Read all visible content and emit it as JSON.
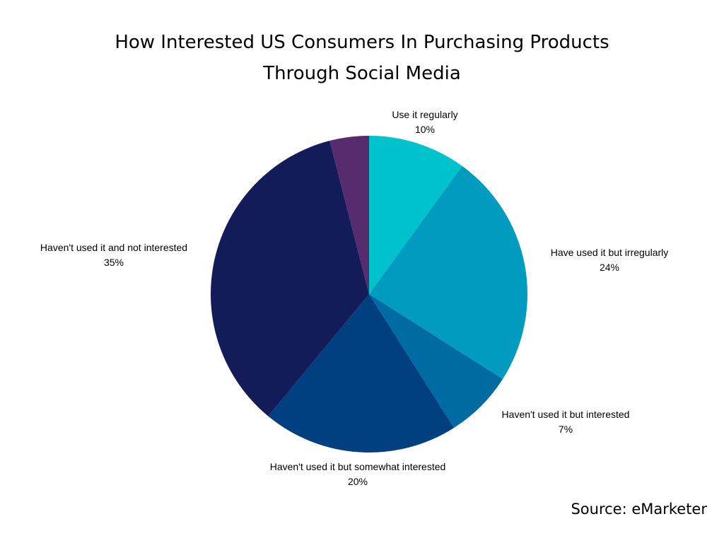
{
  "title": {
    "line1": "How Interested US Consumers In Purchasing Products",
    "line2": "Through Social Media"
  },
  "source": "Source: eMarketer",
  "chart_data": {
    "type": "pie",
    "title": "How Interested US Consumers In Purchasing Products Through Social Media",
    "start_angle": "12 o'clock",
    "direction": "clockwise",
    "slices": [
      {
        "label": "Use it regularly",
        "value": 10,
        "value_label": "10%",
        "color": "#00c2cc"
      },
      {
        "label": "Have used it but irregularly",
        "value": 24,
        "value_label": "24%",
        "color": "#009bbf"
      },
      {
        "label": "Haven't used it but interested",
        "value": 7,
        "value_label": "7%",
        "color": "#006aa3"
      },
      {
        "label": "Haven't used it but somewhat interested",
        "value": 20,
        "value_label": "20%",
        "color": "#003f80"
      },
      {
        "label": "Haven't used it and not interested",
        "value": 35,
        "value_label": "35%",
        "color": "#131b59"
      },
      {
        "label": "",
        "value": 4,
        "value_label": "",
        "color": "#562c6e"
      }
    ]
  }
}
